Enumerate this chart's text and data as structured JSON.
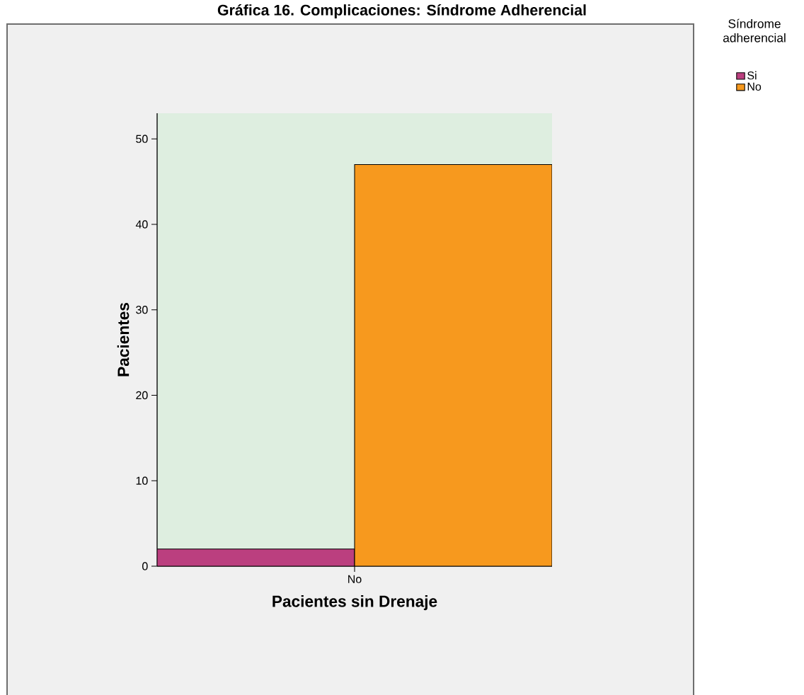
{
  "chart_data": {
    "type": "bar",
    "title": "Gráfica 16. Complicaciones: Síndrome Adherencial",
    "xlabel": "Pacientes sin Drenaje",
    "ylabel": "Pacientes",
    "legend_title": "Síndrome adherencial",
    "categories": [
      "No"
    ],
    "series": [
      {
        "name": "Si",
        "color": "#bb3f7f",
        "values": [
          2
        ]
      },
      {
        "name": "No",
        "color": "#f7991e",
        "values": [
          47
        ]
      }
    ],
    "ylim": [
      0,
      53
    ],
    "yticks": [
      0,
      10,
      20,
      30,
      40,
      50
    ],
    "legend": "top right"
  }
}
